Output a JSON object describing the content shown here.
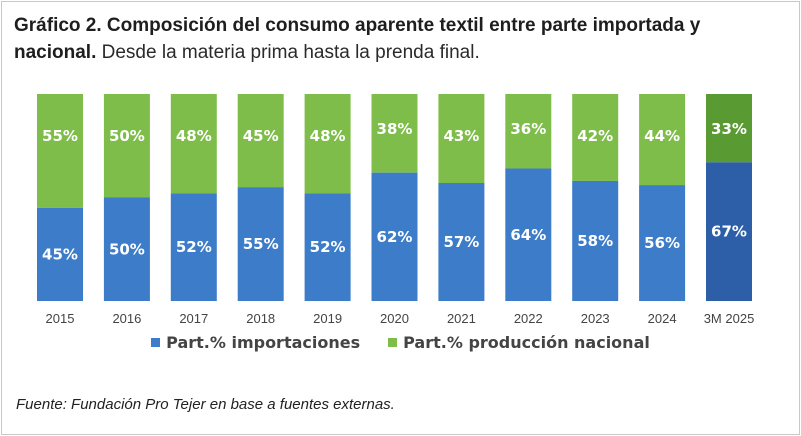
{
  "title": {
    "bold": "Gráfico 2. Composición del consumo aparente textil entre parte importada y nacional.",
    "normal": "Desde la materia prima hasta la prenda final."
  },
  "source": "Fuente: Fundación Pro Tejer en base a fuentes externas.",
  "colors": {
    "importaciones": "#3d7cc9",
    "nacional": "#7fbd4a",
    "importaciones_highlight": "#2c5fa8",
    "nacional_highlight": "#5a9a32"
  },
  "chart_data": {
    "type": "bar",
    "stacked": true,
    "categories": [
      "2015",
      "2016",
      "2017",
      "2018",
      "2019",
      "2020",
      "2021",
      "2022",
      "2023",
      "2024",
      "3M 2025"
    ],
    "series": [
      {
        "name": "Part.% importaciones",
        "values": [
          45,
          50,
          52,
          55,
          52,
          62,
          57,
          64,
          58,
          56,
          67
        ],
        "labels": [
          "45%",
          "50%",
          "52%",
          "55%",
          "52%",
          "62%",
          "57%",
          "64%",
          "58%",
          "56%",
          "67%"
        ]
      },
      {
        "name": "Part.% producción nacional",
        "values": [
          55,
          50,
          48,
          45,
          48,
          38,
          43,
          36,
          42,
          44,
          33
        ],
        "labels": [
          "55%",
          "50%",
          "48%",
          "45%",
          "48%",
          "38%",
          "43%",
          "36%",
          "42%",
          "44%",
          "33%"
        ]
      }
    ],
    "ylim": [
      0,
      100
    ],
    "legend_position": "bottom",
    "grid": false
  }
}
